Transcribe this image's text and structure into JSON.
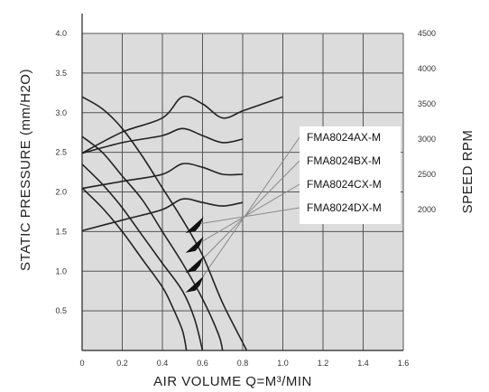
{
  "chart_data": {
    "type": "line",
    "xlabel": "AIR VOLUME  Q=M³/MIN",
    "ylabel": "STATIC PRESSURE  (mm/H2O)",
    "y2label": "SPEED  RPM",
    "xlim": [
      0,
      1.6
    ],
    "ylim": [
      0,
      4.0
    ],
    "y2lim": [
      0,
      4500
    ],
    "x_ticks": [
      "0",
      "0.2",
      "0.4",
      "0.6",
      "0.8",
      "1.0",
      "1.2",
      "1.4",
      "1.6"
    ],
    "y_ticks": [
      "0.5",
      "1.0",
      "1.5",
      "2.0",
      "2.5",
      "3.0",
      "3.5",
      "4.0"
    ],
    "y2_ticks": [
      "2000",
      "2500",
      "3000",
      "3500",
      "4000",
      "4500"
    ],
    "grid": true,
    "plot_background": "#dcdcdc",
    "line_color": "#222222",
    "series": [
      {
        "name": "FMA8024DX-M",
        "pressure_curve": [
          [
            0,
            3.2
          ],
          [
            0.1,
            3.05
          ],
          [
            0.2,
            2.8
          ],
          [
            0.3,
            2.45
          ],
          [
            0.4,
            2.05
          ],
          [
            0.5,
            1.65
          ],
          [
            0.6,
            1.2
          ],
          [
            0.7,
            0.6
          ],
          [
            0.8,
            0.1
          ],
          [
            0.82,
            0
          ]
        ],
        "speed_curve": [
          [
            0,
            2800
          ],
          [
            0.2,
            3100
          ],
          [
            0.4,
            3300
          ],
          [
            0.5,
            3600
          ],
          [
            0.6,
            3500
          ],
          [
            0.7,
            3300
          ],
          [
            0.8,
            3400
          ],
          [
            0.9,
            3500
          ],
          [
            1.0,
            3600
          ]
        ]
      },
      {
        "name": "FMA8024CX-M",
        "pressure_curve": [
          [
            0,
            2.7
          ],
          [
            0.1,
            2.5
          ],
          [
            0.2,
            2.2
          ],
          [
            0.3,
            1.9
          ],
          [
            0.4,
            1.5
          ],
          [
            0.5,
            1.1
          ],
          [
            0.6,
            0.65
          ],
          [
            0.68,
            0.2
          ],
          [
            0.7,
            0
          ]
        ],
        "speed_curve": [
          [
            0,
            2800
          ],
          [
            0.2,
            2950
          ],
          [
            0.4,
            3050
          ],
          [
            0.5,
            3150
          ],
          [
            0.6,
            3050
          ],
          [
            0.7,
            2950
          ],
          [
            0.8,
            3000
          ]
        ]
      },
      {
        "name": "FMA8024BX-M",
        "pressure_curve": [
          [
            0,
            2.35
          ],
          [
            0.1,
            2.1
          ],
          [
            0.2,
            1.8
          ],
          [
            0.3,
            1.45
          ],
          [
            0.4,
            1.1
          ],
          [
            0.5,
            0.75
          ],
          [
            0.56,
            0.4
          ],
          [
            0.6,
            0
          ]
        ],
        "speed_curve": [
          [
            0,
            2300
          ],
          [
            0.2,
            2400
          ],
          [
            0.4,
            2500
          ],
          [
            0.5,
            2650
          ],
          [
            0.6,
            2600
          ],
          [
            0.7,
            2500
          ],
          [
            0.8,
            2500
          ]
        ]
      },
      {
        "name": "FMA8024AX-M",
        "pressure_curve": [
          [
            0,
            2.05
          ],
          [
            0.1,
            1.8
          ],
          [
            0.2,
            1.5
          ],
          [
            0.3,
            1.15
          ],
          [
            0.4,
            0.8
          ],
          [
            0.45,
            0.55
          ],
          [
            0.5,
            0.25
          ],
          [
            0.52,
            0
          ]
        ],
        "speed_curve": [
          [
            0,
            1700
          ],
          [
            0.2,
            1850
          ],
          [
            0.4,
            2000
          ],
          [
            0.5,
            2150
          ],
          [
            0.6,
            2100
          ],
          [
            0.7,
            2050
          ],
          [
            0.8,
            2100
          ]
        ]
      }
    ]
  }
}
